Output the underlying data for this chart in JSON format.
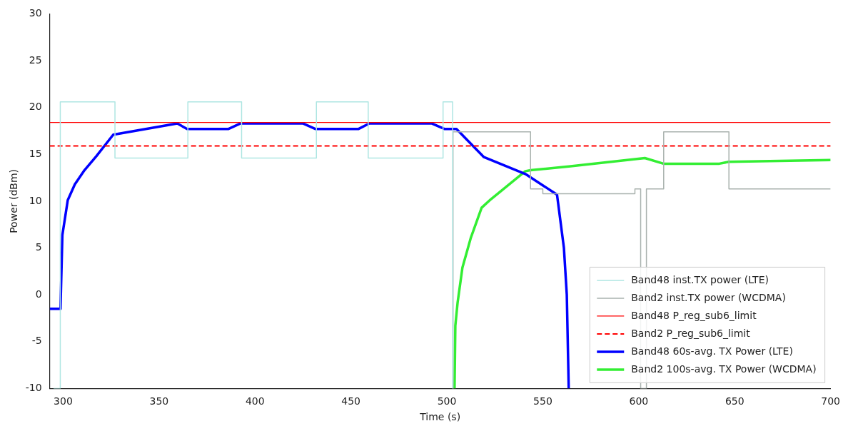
{
  "chart_data": {
    "type": "line",
    "xlabel": "Time (s)",
    "ylabel": "Power (dBm)",
    "xlim": [
      293,
      700
    ],
    "xticks": [
      300,
      350,
      400,
      450,
      500,
      550,
      600,
      650,
      700
    ],
    "ylim": [
      -10,
      30
    ],
    "yticks": [
      -10,
      -5,
      0,
      5,
      10,
      15,
      20,
      25,
      30
    ],
    "grid": false,
    "legend": "bottom right",
    "marker": "none",
    "series": [
      {
        "name": "Band48 inst.TX power (LTE)",
        "type": "step",
        "color": "#aee6e2",
        "line_style": "solid",
        "x": [
          295,
          298.5,
          327,
          365,
          393,
          432,
          459,
          498,
          503
        ],
        "values": [
          -10,
          20.6,
          14.6,
          20.6,
          14.6,
          20.6,
          14.6,
          20.6,
          -10
        ]
      },
      {
        "name": "Band2 inst.TX power (WCDMA)",
        "type": "step",
        "color": "#a9b2ae",
        "line_style": "solid",
        "x": [
          503,
          503.2,
          543.6,
          550,
          598,
          601,
          604,
          613,
          647,
          700
        ],
        "values": [
          -10,
          17.4,
          11.3,
          10.8,
          11.3,
          -10,
          11.3,
          17.4,
          11.3,
          11.3
        ]
      },
      {
        "name": "Band48 P_reg_sub6_limit",
        "type": "line",
        "color": "#ff0000",
        "line_style": "solid",
        "x": [
          293,
          700
        ],
        "values": [
          18.4,
          18.4
        ]
      },
      {
        "name": "Band2 P_reg_sub6_limit",
        "type": "line",
        "color": "#ff0000",
        "line_style": "dashed",
        "x": [
          293,
          700
        ],
        "values": [
          15.9,
          15.9
        ]
      },
      {
        "name": "Band48 60s-avg. TX Power (LTE)",
        "type": "line",
        "color": "#0000ff",
        "line_style": "solid",
        "x": [
          293,
          298.6,
          299.6,
          302.4,
          306.1,
          311.1,
          317.3,
          326.1,
          359.5,
          364.6,
          386,
          392.5,
          424.9,
          431.6,
          453.8,
          459.6,
          492,
          498.9,
          505,
          519.3,
          540.9,
          557.4,
          561,
          562.5,
          563.5
        ],
        "values": [
          -1.5,
          -1.5,
          6.4,
          10.1,
          11.8,
          13.3,
          14.8,
          17.1,
          18.3,
          17.7,
          17.7,
          18.3,
          18.3,
          17.7,
          17.7,
          18.3,
          18.3,
          17.7,
          17.7,
          14.7,
          12.9,
          10.7,
          5,
          0,
          -10
        ]
      },
      {
        "name": "Band2 100s-avg. TX Power (WCDMA)",
        "type": "line",
        "color": "#33ee33",
        "line_style": "solid",
        "x": [
          504,
          504.4,
          505.6,
          508.1,
          512.5,
          518.1,
          522.9,
          540.9,
          543.6,
          563.6,
          603.2,
          612.9,
          642,
          646.9,
          700
        ],
        "values": [
          -10,
          -3.3,
          -0.8,
          2.9,
          6.1,
          9.3,
          10.2,
          13.2,
          13.3,
          13.7,
          14.6,
          14,
          14,
          14.2,
          14.4
        ]
      }
    ]
  }
}
